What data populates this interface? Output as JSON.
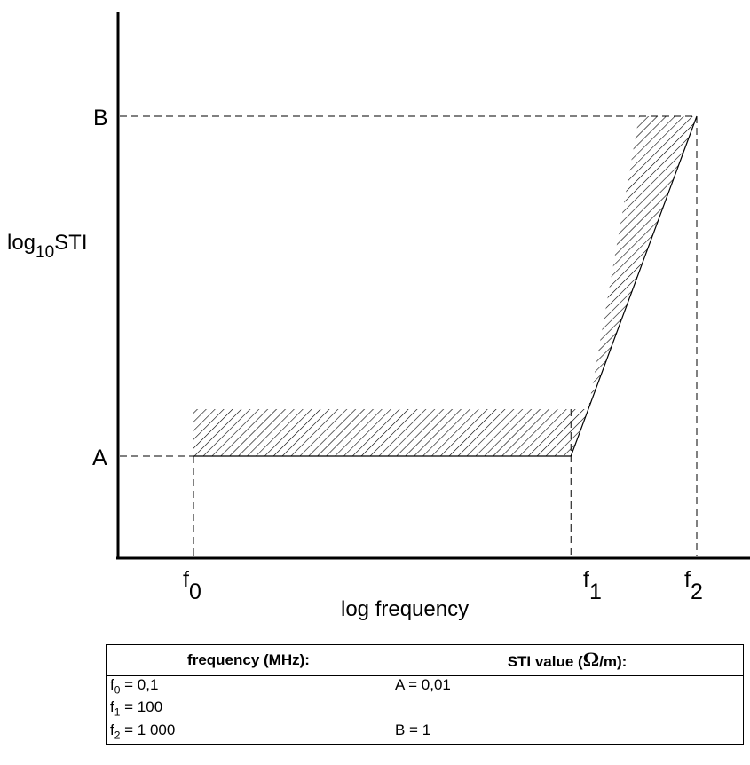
{
  "chart_data": {
    "type": "area",
    "xlabel": "log frequency",
    "ylabel_main": "log",
    "ylabel_sub": "10",
    "ylabel_suffix": "STI",
    "x_ticks": [
      {
        "label": "f",
        "sub": "0",
        "key": "f0"
      },
      {
        "label": "f",
        "sub": "1",
        "key": "f1"
      },
      {
        "label": "f",
        "sub": "2",
        "key": "f2"
      }
    ],
    "y_ticks": [
      {
        "label": "A",
        "key": "A"
      },
      {
        "label": "B",
        "key": "B"
      }
    ],
    "x_values_MHz": {
      "f0": 0.1,
      "f1": 100,
      "f2": 1000
    },
    "y_values_ohm_per_m": {
      "A": 0.01,
      "B": 1
    },
    "x_scale": "log",
    "y_scale": "log",
    "limit_line": [
      {
        "x": 0.1,
        "y": 0.01
      },
      {
        "x": 100,
        "y": 0.01
      },
      {
        "x": 1000,
        "y": 1
      }
    ],
    "hatched_region": "above limit line",
    "grid": false
  },
  "table": {
    "header_freq": "frequency (MHz):",
    "header_sti_prefix": "STI value (",
    "header_sti_omega": "Ω",
    "header_sti_suffix": "/m):",
    "rows": [
      {
        "f_label": "f",
        "f_sub": "0",
        "f_value": " = 0,1",
        "sti": "A = 0,01"
      },
      {
        "f_label": "f",
        "f_sub": "1",
        "f_value": " = 100",
        "sti": ""
      },
      {
        "f_label": "f",
        "f_sub": "2",
        "f_value": " = 1 000",
        "sti": "B = 1"
      }
    ]
  },
  "colors": {
    "ink": "#000000",
    "background": "#ffffff"
  }
}
